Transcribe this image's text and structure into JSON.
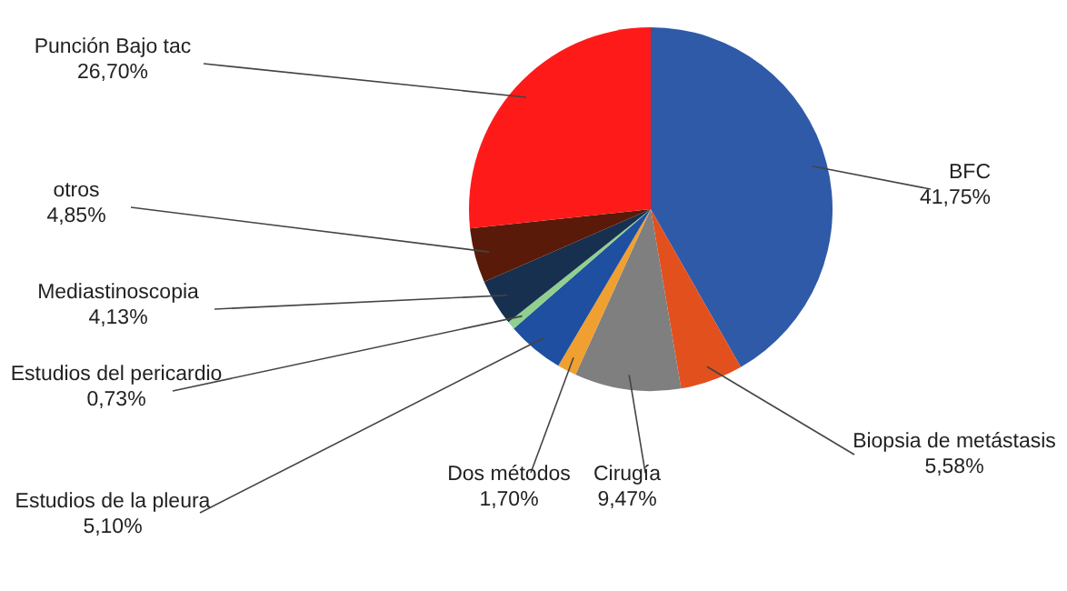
{
  "chart_data": {
    "type": "pie",
    "categories": [
      "BFC",
      "Biopsia de metástasis",
      "Cirugía",
      "Dos métodos",
      "Estudios de la pleura",
      "Estudios del pericardio",
      "Mediastinoscopia",
      "otros",
      "Punción Bajo tac"
    ],
    "values": [
      41.75,
      5.58,
      9.47,
      1.7,
      5.1,
      0.73,
      4.13,
      4.85,
      26.7
    ],
    "value_labels": [
      "41,75%",
      "5,58%",
      "9,47%",
      "1,70%",
      "5,10%",
      "0,73%",
      "4,13%",
      "4,85%",
      "26,70%"
    ],
    "colors": [
      "#2e5aa8",
      "#e2501e",
      "#7f7f7f",
      "#f0a030",
      "#1f4fa0",
      "#8fd08f",
      "#17304f",
      "#5a1a0a",
      "#ff1a1a"
    ]
  }
}
